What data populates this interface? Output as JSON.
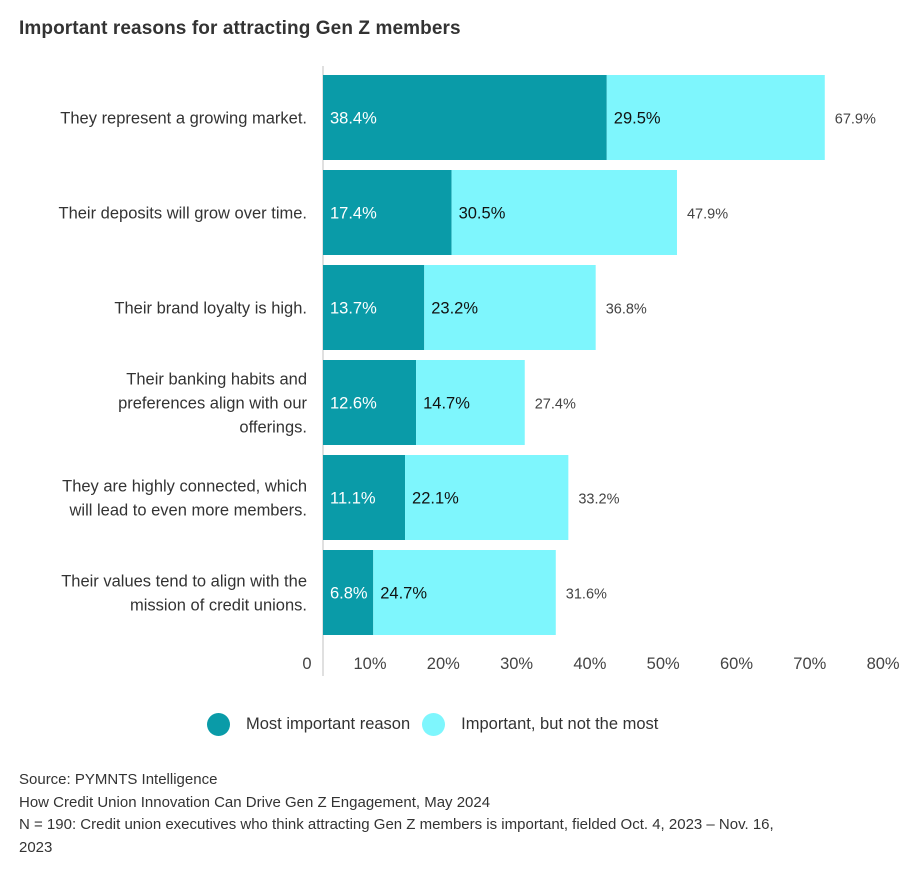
{
  "chart_data": {
    "type": "bar",
    "orientation": "horizontal",
    "stacked": true,
    "title": "Important reasons for attracting Gen Z members",
    "categories": [
      "They represent a growing market.",
      "Their deposits will grow over time.",
      "Their brand loyalty is high.",
      "Their banking habits and preferences align with our offerings.",
      "They are highly connected, which will lead to even more members.",
      "Their values tend to align with the mission of credit unions."
    ],
    "category_lines": [
      [
        "They represent a growing market."
      ],
      [
        "Their deposits will grow over time."
      ],
      [
        "Their brand loyalty is high."
      ],
      [
        "Their banking habits and",
        "preferences align with our",
        "offerings."
      ],
      [
        "They are highly connected, which",
        "will lead to even more members."
      ],
      [
        "Their values tend to align with the",
        "mission of credit unions."
      ]
    ],
    "series": [
      {
        "name": "Most important reason",
        "color": "#0a9ba8",
        "values": [
          38.4,
          17.4,
          13.7,
          12.6,
          11.1,
          6.8
        ]
      },
      {
        "name": "Important, but not the most",
        "color": "#7ef6fd",
        "values": [
          29.5,
          30.5,
          23.2,
          14.7,
          22.1,
          24.7
        ]
      }
    ],
    "totals": [
      67.9,
      47.9,
      36.8,
      27.4,
      33.2,
      31.6
    ],
    "value_suffix": "%",
    "xlim": [
      0,
      80
    ],
    "xticks": [
      "0",
      "10%",
      "20%",
      "30%",
      "40%",
      "50%",
      "60%",
      "70%",
      "80%"
    ],
    "xlabel": "",
    "ylabel": "",
    "grid": false,
    "legend_position": "bottom-center"
  },
  "footer": {
    "source": "Source: PYMNTS Intelligence",
    "report": "How Credit Union Innovation Can Drive Gen Z Engagement, May 2024",
    "sample_line1": "N = 190: Credit union executives who think attracting Gen Z members is important, fielded Oct. 4, 2023 – Nov. 16,",
    "sample_line2": "2023"
  }
}
